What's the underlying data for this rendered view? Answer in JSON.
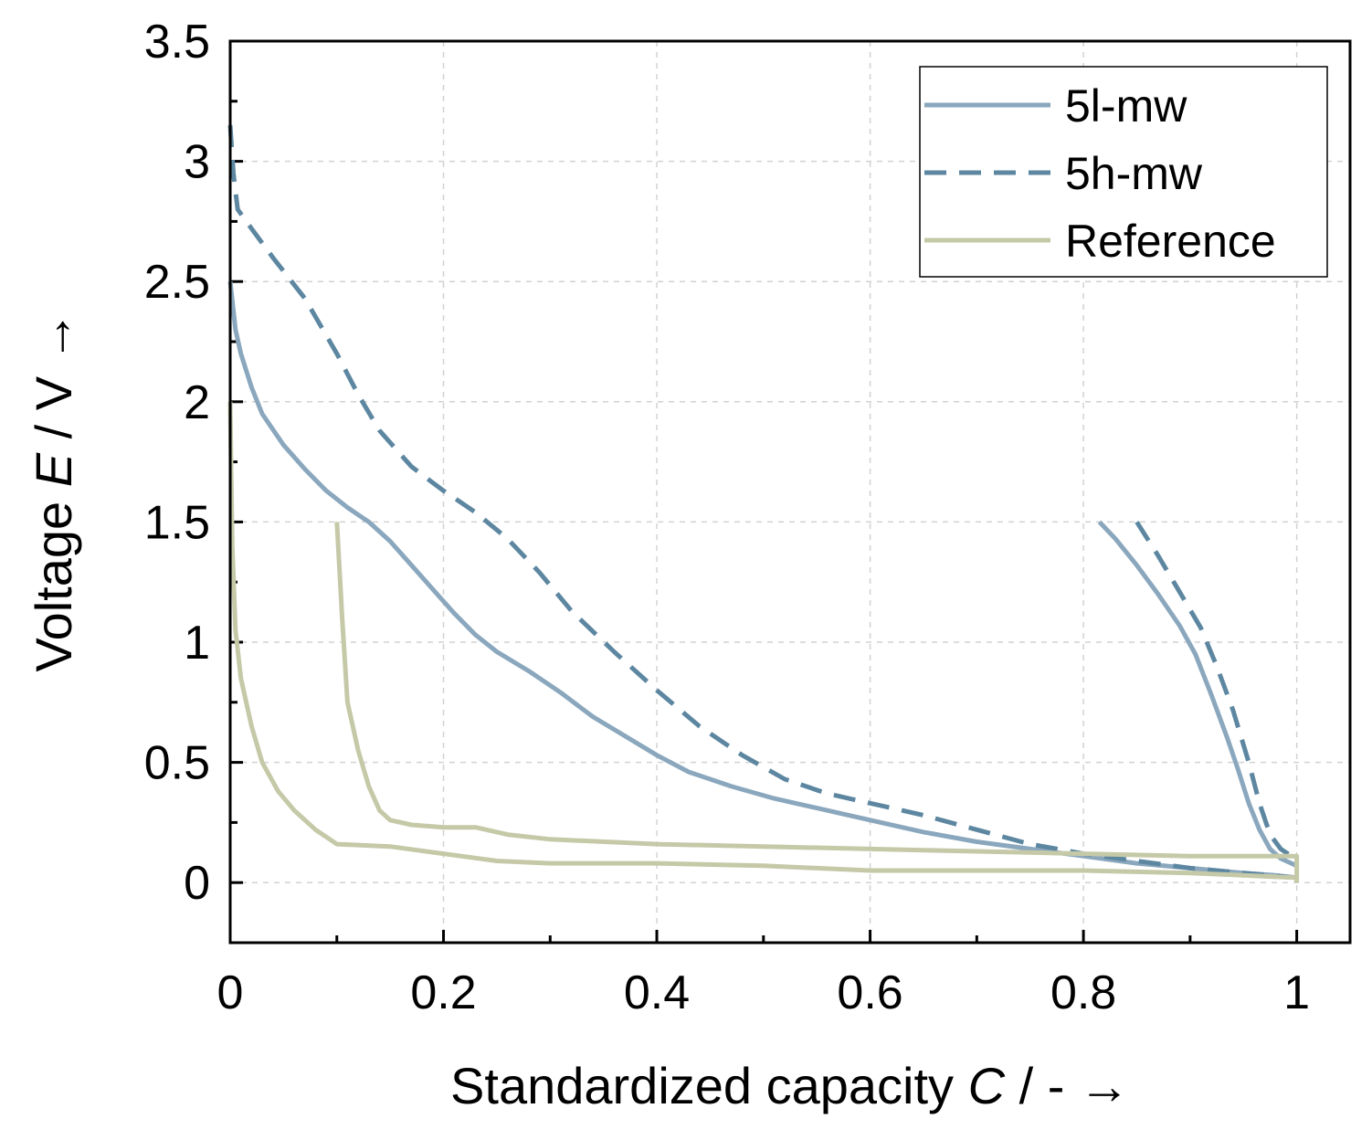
{
  "chart_data": {
    "type": "line",
    "xlabel": {
      "prefix": "Standardized capacity ",
      "var": "C",
      "suffix": " / - →"
    },
    "ylabel": {
      "prefix": "Voltage ",
      "var": "E",
      "suffix": " / V →"
    },
    "xlim": [
      0,
      1.05
    ],
    "ylim": [
      -0.25,
      3.5
    ],
    "xticks": [
      {
        "value": 0,
        "label": "0"
      },
      {
        "value": 0.2,
        "label": "0.2"
      },
      {
        "value": 0.4,
        "label": "0.4"
      },
      {
        "value": 0.6,
        "label": "0.6"
      },
      {
        "value": 0.8,
        "label": "0.8"
      },
      {
        "value": 1,
        "label": "1"
      }
    ],
    "yticks": [
      {
        "value": 0,
        "label": "0"
      },
      {
        "value": 0.5,
        "label": "0.5"
      },
      {
        "value": 1,
        "label": "1"
      },
      {
        "value": 1.5,
        "label": "1.5"
      },
      {
        "value": 2,
        "label": "2"
      },
      {
        "value": 2.5,
        "label": "2.5"
      },
      {
        "value": 3,
        "label": "3"
      },
      {
        "value": 3.5,
        "label": "3.5"
      }
    ],
    "x_minor_ticks": [
      0.1,
      0.3,
      0.5,
      0.7,
      0.9
    ],
    "y_minor_ticks": [
      -0.25,
      0.25,
      0.75,
      1.25,
      1.75,
      2.25,
      2.75,
      3.25
    ],
    "grid": true,
    "legend_position": "top-right",
    "series": [
      {
        "name": "5l-mw",
        "color": "#8aa7bd",
        "dash": "solid",
        "segments": [
          [
            [
              0,
              2.5
            ],
            [
              0.005,
              2.3
            ],
            [
              0.01,
              2.2
            ],
            [
              0.02,
              2.06
            ],
            [
              0.03,
              1.95
            ],
            [
              0.05,
              1.82
            ],
            [
              0.07,
              1.72
            ],
            [
              0.09,
              1.63
            ],
            [
              0.11,
              1.56
            ],
            [
              0.13,
              1.5
            ],
            [
              0.15,
              1.42
            ],
            [
              0.17,
              1.32
            ],
            [
              0.19,
              1.22
            ],
            [
              0.21,
              1.12
            ],
            [
              0.23,
              1.03
            ],
            [
              0.25,
              0.96
            ],
            [
              0.28,
              0.88
            ],
            [
              0.31,
              0.79
            ],
            [
              0.34,
              0.69
            ],
            [
              0.37,
              0.61
            ],
            [
              0.4,
              0.53
            ],
            [
              0.43,
              0.46
            ],
            [
              0.47,
              0.4
            ],
            [
              0.51,
              0.35
            ],
            [
              0.55,
              0.31
            ],
            [
              0.6,
              0.26
            ],
            [
              0.65,
              0.21
            ],
            [
              0.7,
              0.17
            ],
            [
              0.75,
              0.14
            ],
            [
              0.8,
              0.11
            ],
            [
              0.85,
              0.08
            ],
            [
              0.9,
              0.06
            ],
            [
              0.95,
              0.04
            ],
            [
              0.98,
              0.03
            ],
            [
              1.0,
              0.02
            ]
          ],
          [
            [
              0.815,
              1.5
            ],
            [
              0.83,
              1.43
            ],
            [
              0.85,
              1.32
            ],
            [
              0.87,
              1.2
            ],
            [
              0.89,
              1.07
            ],
            [
              0.905,
              0.95
            ],
            [
              0.92,
              0.78
            ],
            [
              0.935,
              0.6
            ],
            [
              0.945,
              0.47
            ],
            [
              0.955,
              0.33
            ],
            [
              0.965,
              0.22
            ],
            [
              0.975,
              0.14
            ],
            [
              0.985,
              0.1
            ],
            [
              0.995,
              0.08
            ],
            [
              1.0,
              0.07
            ]
          ]
        ]
      },
      {
        "name": "5h-mw",
        "color": "#5d87a1",
        "dash": "dashed",
        "segments": [
          [
            [
              0,
              3.15
            ],
            [
              0.003,
              2.95
            ],
            [
              0.007,
              2.8
            ],
            [
              0.02,
              2.72
            ],
            [
              0.04,
              2.6
            ],
            [
              0.07,
              2.43
            ],
            [
              0.1,
              2.2
            ],
            [
              0.12,
              2.03
            ],
            [
              0.14,
              1.88
            ],
            [
              0.17,
              1.73
            ],
            [
              0.2,
              1.63
            ],
            [
              0.23,
              1.54
            ],
            [
              0.26,
              1.43
            ],
            [
              0.29,
              1.29
            ],
            [
              0.32,
              1.13
            ],
            [
              0.36,
              0.96
            ],
            [
              0.4,
              0.8
            ],
            [
              0.44,
              0.65
            ],
            [
              0.48,
              0.53
            ],
            [
              0.52,
              0.43
            ],
            [
              0.56,
              0.37
            ],
            [
              0.6,
              0.33
            ],
            [
              0.65,
              0.28
            ],
            [
              0.7,
              0.22
            ],
            [
              0.75,
              0.16
            ],
            [
              0.8,
              0.12
            ],
            [
              0.85,
              0.09
            ],
            [
              0.9,
              0.06
            ],
            [
              0.95,
              0.04
            ],
            [
              1.0,
              0.02
            ]
          ],
          [
            [
              0.85,
              1.5
            ],
            [
              0.87,
              1.36
            ],
            [
              0.89,
              1.21
            ],
            [
              0.91,
              1.06
            ],
            [
              0.925,
              0.9
            ],
            [
              0.94,
              0.72
            ],
            [
              0.955,
              0.5
            ],
            [
              0.965,
              0.33
            ],
            [
              0.975,
              0.2
            ],
            [
              0.985,
              0.14
            ],
            [
              0.995,
              0.11
            ],
            [
              1.0,
              0.1
            ]
          ]
        ]
      },
      {
        "name": "Reference",
        "color": "#c5c9a7",
        "dash": "solid",
        "segments": [
          [
            [
              0,
              2.0
            ],
            [
              0.002,
              1.4
            ],
            [
              0.005,
              1.05
            ],
            [
              0.01,
              0.85
            ],
            [
              0.02,
              0.65
            ],
            [
              0.03,
              0.5
            ],
            [
              0.045,
              0.38
            ],
            [
              0.06,
              0.3
            ],
            [
              0.08,
              0.22
            ],
            [
              0.1,
              0.16
            ],
            [
              0.15,
              0.15
            ],
            [
              0.2,
              0.12
            ],
            [
              0.25,
              0.09
            ],
            [
              0.3,
              0.08
            ],
            [
              0.4,
              0.08
            ],
            [
              0.5,
              0.07
            ],
            [
              0.6,
              0.05
            ],
            [
              0.7,
              0.05
            ],
            [
              0.8,
              0.05
            ],
            [
              0.9,
              0.04
            ],
            [
              0.95,
              0.03
            ],
            [
              1.0,
              0.02
            ]
          ],
          [
            [
              0.1,
              1.5
            ],
            [
              0.105,
              1.1
            ],
            [
              0.11,
              0.75
            ],
            [
              0.12,
              0.55
            ],
            [
              0.13,
              0.4
            ],
            [
              0.14,
              0.3
            ],
            [
              0.15,
              0.26
            ],
            [
              0.17,
              0.24
            ],
            [
              0.2,
              0.23
            ],
            [
              0.23,
              0.23
            ],
            [
              0.26,
              0.2
            ],
            [
              0.3,
              0.18
            ],
            [
              0.4,
              0.16
            ],
            [
              0.5,
              0.15
            ],
            [
              0.6,
              0.14
            ],
            [
              0.7,
              0.13
            ],
            [
              0.8,
              0.12
            ],
            [
              0.9,
              0.11
            ],
            [
              1.0,
              0.11
            ],
            [
              1.0,
              0.0
            ]
          ]
        ]
      }
    ]
  }
}
